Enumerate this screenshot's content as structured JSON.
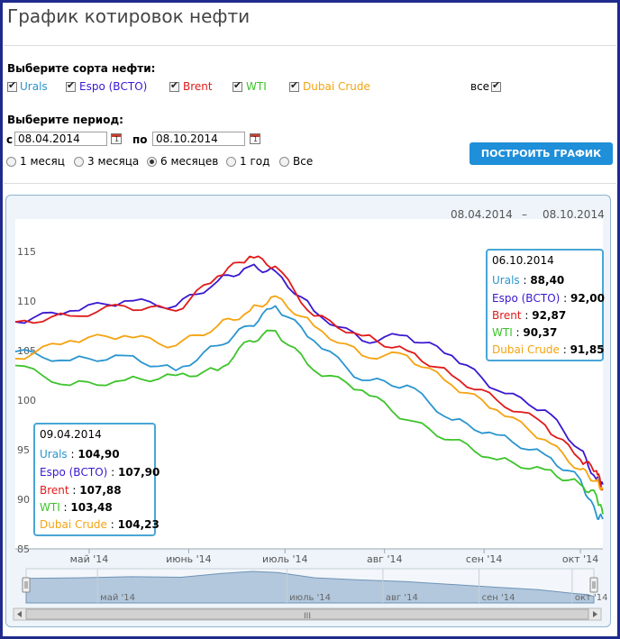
{
  "page": {
    "title": "График котировок нефти"
  },
  "oil_select": {
    "label": "Выберите сорта нефти:",
    "items": [
      {
        "label": "Urals",
        "color": "#2a95cf",
        "checked": true
      },
      {
        "label": "Espo (ВСТО)",
        "color": "#3a17d0",
        "checked": true
      },
      {
        "label": "Brent",
        "color": "#e11a1a",
        "checked": true
      },
      {
        "label": "WTI",
        "color": "#3cc42a",
        "checked": true
      },
      {
        "label": "Dubai Crude",
        "color": "#f5a311",
        "checked": true
      }
    ],
    "all_label": "все"
  },
  "period": {
    "label": "Выберите период:",
    "from_label": "с",
    "from_value": "08.04.2014",
    "to_label": "по",
    "to_value": "08.10.2014",
    "options": [
      "1 месяц",
      "3 месяца",
      "6 месяцев",
      "1 год",
      "Все"
    ],
    "selected": "6 месяцев"
  },
  "build_button": "ПОСТРОИТЬ ГРАФИК",
  "range": {
    "from": "08.04.2014",
    "dash": "–",
    "to": "08.10.2014"
  },
  "tooltips": [
    {
      "date": "06.10.2014",
      "rows": [
        {
          "name": "Urals",
          "value": "88,40"
        },
        {
          "name": "Espo (ВСТО)",
          "value": "92,00"
        },
        {
          "name": "Brent",
          "value": "92,87"
        },
        {
          "name": "WTI",
          "value": "90,37"
        },
        {
          "name": "Dubai Crude",
          "value": "91,85"
        }
      ]
    },
    {
      "date": "09.04.2014",
      "rows": [
        {
          "name": "Urals",
          "value": "104,90"
        },
        {
          "name": "Espo (ВСТО)",
          "value": "107,90"
        },
        {
          "name": "Brent",
          "value": "107,88"
        },
        {
          "name": "WTI",
          "value": "103,48"
        },
        {
          "name": "Dubai Crude",
          "value": "104,23"
        }
      ]
    }
  ],
  "chart_data": {
    "type": "line",
    "y_ticks": [
      "85",
      "90",
      "95",
      "100",
      "105",
      "110",
      "115"
    ],
    "ylim": [
      85,
      117
    ],
    "x_ticks": [
      "май '14",
      "июнь '14",
      "июль '14",
      "авг '14",
      "сен '14",
      "окт '14"
    ],
    "x_tick_dates": [
      "2014-05-01",
      "2014-06-01",
      "2014-07-01",
      "2014-08-01",
      "2014-09-01",
      "2014-10-01"
    ],
    "xlim": [
      "2014-04-08",
      "2014-10-08"
    ],
    "grid": false,
    "navigator_ticks": [
      "май '14",
      "июль '14",
      "авг '14",
      "сен '14",
      "окт '14"
    ],
    "scrollbar_grip": "III",
    "series": [
      {
        "name": "Urals",
        "color": "#2a95cf",
        "x": [
          "2014-04-08",
          "2014-04-25",
          "2014-05-12",
          "2014-05-28",
          "2014-06-10",
          "2014-06-20",
          "2014-06-28",
          "2014-07-10",
          "2014-07-25",
          "2014-08-08",
          "2014-08-22",
          "2014-09-05",
          "2014-09-20",
          "2014-10-01",
          "2014-10-06",
          "2014-10-08"
        ],
        "y": [
          104.9,
          104.0,
          104.5,
          103.0,
          105.5,
          107.5,
          109.5,
          106.0,
          102.0,
          101.5,
          98.0,
          96.5,
          94.5,
          92.0,
          88.4,
          88.0
        ]
      },
      {
        "name": "Espo (ВСТО)",
        "color": "#3a17d0",
        "x": [
          "2014-04-08",
          "2014-04-25",
          "2014-05-12",
          "2014-05-28",
          "2014-06-10",
          "2014-06-20",
          "2014-06-28",
          "2014-07-10",
          "2014-07-25",
          "2014-08-08",
          "2014-08-22",
          "2014-09-05",
          "2014-09-20",
          "2014-10-01",
          "2014-10-06",
          "2014-10-08"
        ],
        "y": [
          107.9,
          109.0,
          110.0,
          109.5,
          112.0,
          113.5,
          113.0,
          109.0,
          106.0,
          106.5,
          104.5,
          101.0,
          99.0,
          95.0,
          92.0,
          91.5
        ]
      },
      {
        "name": "Brent",
        "color": "#e11a1a",
        "x": [
          "2014-04-08",
          "2014-04-25",
          "2014-05-12",
          "2014-05-28",
          "2014-06-10",
          "2014-06-20",
          "2014-06-28",
          "2014-07-10",
          "2014-07-25",
          "2014-08-08",
          "2014-08-22",
          "2014-09-05",
          "2014-09-20",
          "2014-10-01",
          "2014-10-06",
          "2014-10-08"
        ],
        "y": [
          107.9,
          108.5,
          109.5,
          109.0,
          112.5,
          114.5,
          113.5,
          108.5,
          106.5,
          105.0,
          102.5,
          100.0,
          97.5,
          94.0,
          92.87,
          91.0
        ]
      },
      {
        "name": "WTI",
        "color": "#3cc42a",
        "x": [
          "2014-04-08",
          "2014-04-25",
          "2014-05-12",
          "2014-05-28",
          "2014-06-10",
          "2014-06-20",
          "2014-06-28",
          "2014-07-10",
          "2014-07-25",
          "2014-08-08",
          "2014-08-22",
          "2014-09-05",
          "2014-09-20",
          "2014-10-01",
          "2014-10-06",
          "2014-10-08"
        ],
        "y": [
          103.5,
          101.5,
          102.0,
          102.5,
          103.0,
          106.0,
          107.0,
          103.0,
          101.0,
          98.0,
          96.0,
          94.0,
          93.0,
          91.5,
          90.37,
          88.5
        ]
      },
      {
        "name": "Dubai Crude",
        "color": "#f5a311",
        "x": [
          "2014-04-08",
          "2014-04-25",
          "2014-05-12",
          "2014-05-28",
          "2014-06-10",
          "2014-06-20",
          "2014-06-28",
          "2014-07-10",
          "2014-07-25",
          "2014-08-08",
          "2014-08-22",
          "2014-09-05",
          "2014-09-20",
          "2014-10-01",
          "2014-10-06",
          "2014-10-08"
        ],
        "y": [
          104.2,
          106.0,
          106.5,
          105.5,
          107.5,
          109.0,
          110.5,
          107.5,
          104.5,
          104.5,
          101.5,
          99.0,
          96.0,
          93.0,
          91.85,
          91.0
        ]
      }
    ]
  }
}
